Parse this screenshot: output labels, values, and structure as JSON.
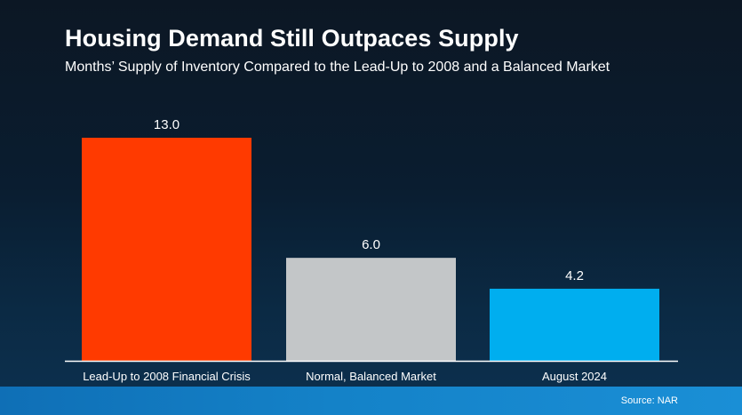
{
  "header": {
    "title": "Housing Demand Still Outpaces Supply",
    "subtitle": "Months’ Supply of Inventory Compared to the Lead-Up to 2008 and a Balanced Market"
  },
  "footer": {
    "source": "Source: NAR"
  },
  "chart_data": {
    "type": "bar",
    "title": "Housing Demand Still Outpaces Supply",
    "subtitle": "Months’ Supply of Inventory Compared to the Lead-Up to 2008 and a Balanced Market",
    "categories": [
      "Lead-Up to 2008 Financial Crisis",
      "Normal, Balanced Market",
      "August 2024"
    ],
    "values": [
      13.0,
      6.0,
      4.2
    ],
    "value_labels": [
      "13.0",
      "6.0",
      "4.2"
    ],
    "colors": [
      "#ff3a00",
      "#c3c6c8",
      "#00aeef"
    ],
    "ylim": [
      0,
      13.0
    ],
    "grid": false,
    "legend": "none",
    "xlabel": "",
    "ylabel": ""
  }
}
